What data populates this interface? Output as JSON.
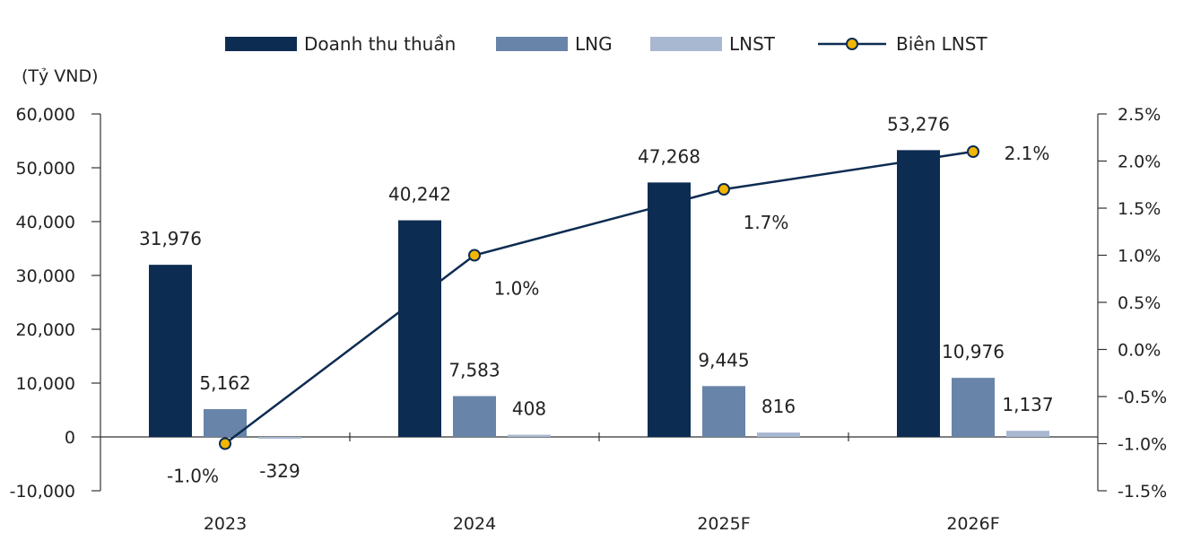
{
  "chart_data": {
    "type": "bar",
    "categories": [
      "2023",
      "2024",
      "2025F",
      "2026F"
    ],
    "series": [
      {
        "name": "Doanh thu thuần",
        "kind": "bar",
        "color": "#0d2c52",
        "values": [
          31976,
          40242,
          47268,
          53276
        ],
        "labels": [
          "31,976",
          "40,242",
          "47,268",
          "53,276"
        ]
      },
      {
        "name": "LNG",
        "kind": "bar",
        "color": "#6884a8",
        "values": [
          5162,
          7583,
          9445,
          10976
        ],
        "labels": [
          "5,162",
          "7,583",
          "9,445",
          "10,976"
        ]
      },
      {
        "name": "LNST",
        "kind": "bar",
        "color": "#a9b8d1",
        "values": [
          -329,
          408,
          816,
          1137
        ],
        "labels": [
          "-329",
          "408",
          "816",
          "1,137"
        ]
      },
      {
        "name": "Biên LNST",
        "kind": "line",
        "axis": "right",
        "color": "#0d2c52",
        "marker_color": "#f2b705",
        "values": [
          -1.0,
          1.0,
          1.7,
          2.1
        ],
        "labels": [
          "-1.0%",
          "1.0%",
          "1.7%",
          "2.1%"
        ]
      }
    ],
    "ylabel": "(Tỷ VND)",
    "ylim": [
      -10000,
      60000
    ],
    "yticks": [
      60000,
      50000,
      40000,
      30000,
      20000,
      10000,
      0,
      -10000
    ],
    "ytick_labels": [
      "60,000",
      "50,000",
      "40,000",
      "30,000",
      "20,000",
      "10,000",
      "0",
      "-10,000"
    ],
    "y2lim": [
      -1.5,
      2.5
    ],
    "y2ticks": [
      2.5,
      2.0,
      1.5,
      1.0,
      0.5,
      0.0,
      -0.5,
      -1.0,
      -1.5
    ],
    "y2tick_labels": [
      "2.5%",
      "2.0%",
      "1.5%",
      "1.0%",
      "0.5%",
      "0.0%",
      "-0.5%",
      "-1.0%",
      "-1.5%"
    ],
    "legend_position": "top",
    "grid": false
  }
}
